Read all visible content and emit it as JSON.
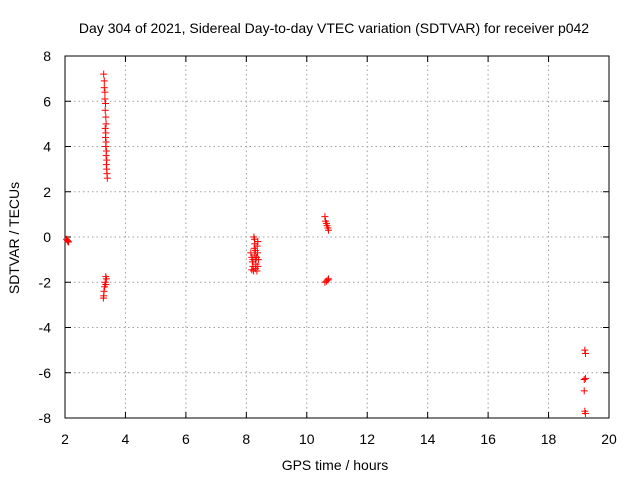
{
  "chart_data": {
    "type": "scatter",
    "title": "Day 304 of 2021, Sidereal Day-to-day VTEC variation (SDTVAR) for receiver p042",
    "xlabel": "GPS time / hours",
    "ylabel": "SDTVAR / TECUs",
    "xlim": [
      2,
      20
    ],
    "ylim": [
      -8,
      8
    ],
    "xticks": [
      2,
      4,
      6,
      8,
      10,
      12,
      14,
      16,
      18,
      20
    ],
    "yticks": [
      -8,
      -6,
      -4,
      -2,
      0,
      2,
      4,
      6,
      8
    ],
    "grid": true,
    "marker": "plus",
    "color": "#ff0000",
    "series": [
      {
        "name": "SDTVAR",
        "points": [
          [
            2.05,
            -0.1
          ],
          [
            2.08,
            -0.15
          ],
          [
            2.1,
            -0.2
          ],
          [
            2.12,
            -0.22
          ],
          [
            3.28,
            7.2
          ],
          [
            3.3,
            6.9
          ],
          [
            3.3,
            6.6
          ],
          [
            3.32,
            6.4
          ],
          [
            3.32,
            6.1
          ],
          [
            3.34,
            5.9
          ],
          [
            3.33,
            5.6
          ],
          [
            3.35,
            5.3
          ],
          [
            3.36,
            5.0
          ],
          [
            3.33,
            4.8
          ],
          [
            3.35,
            4.6
          ],
          [
            3.34,
            4.4
          ],
          [
            3.36,
            4.2
          ],
          [
            3.35,
            4.0
          ],
          [
            3.37,
            3.8
          ],
          [
            3.36,
            3.6
          ],
          [
            3.38,
            3.4
          ],
          [
            3.37,
            3.2
          ],
          [
            3.38,
            3.0
          ],
          [
            3.39,
            2.8
          ],
          [
            3.4,
            2.6
          ],
          [
            3.35,
            -1.75
          ],
          [
            3.37,
            -1.85
          ],
          [
            3.33,
            -2.0
          ],
          [
            3.35,
            -2.1
          ],
          [
            3.31,
            -2.2
          ],
          [
            3.29,
            -2.4
          ],
          [
            3.28,
            -2.6
          ],
          [
            3.27,
            -2.7
          ],
          [
            8.15,
            -0.7
          ],
          [
            8.18,
            -0.9
          ],
          [
            8.2,
            -1.1
          ],
          [
            8.22,
            -1.3
          ],
          [
            8.18,
            -1.45
          ],
          [
            8.25,
            0.0
          ],
          [
            8.27,
            -0.1
          ],
          [
            8.28,
            -0.3
          ],
          [
            8.26,
            -0.5
          ],
          [
            8.3,
            -0.6
          ],
          [
            8.28,
            -0.8
          ],
          [
            8.3,
            -1.0
          ],
          [
            8.32,
            -1.2
          ],
          [
            8.3,
            -1.4
          ],
          [
            8.34,
            -0.9
          ],
          [
            8.36,
            -0.4
          ],
          [
            8.38,
            -0.2
          ],
          [
            8.37,
            -0.7
          ],
          [
            8.4,
            -1.0
          ],
          [
            8.38,
            -1.3
          ],
          [
            8.24,
            -1.5
          ],
          [
            8.35,
            -1.5
          ],
          [
            8.22,
            -1.0
          ],
          [
            10.6,
            0.9
          ],
          [
            10.62,
            0.7
          ],
          [
            10.65,
            0.6
          ],
          [
            10.67,
            0.5
          ],
          [
            10.7,
            0.4
          ],
          [
            10.72,
            0.3
          ],
          [
            10.6,
            -2.0
          ],
          [
            10.65,
            -1.95
          ],
          [
            10.7,
            -1.9
          ],
          [
            10.72,
            -1.85
          ],
          [
            19.2,
            -5.0
          ],
          [
            19.22,
            -5.15
          ],
          [
            19.18,
            -6.3
          ],
          [
            19.22,
            -6.25
          ],
          [
            19.18,
            -6.8
          ],
          [
            19.2,
            -7.7
          ],
          [
            19.22,
            -7.8
          ]
        ]
      }
    ]
  }
}
